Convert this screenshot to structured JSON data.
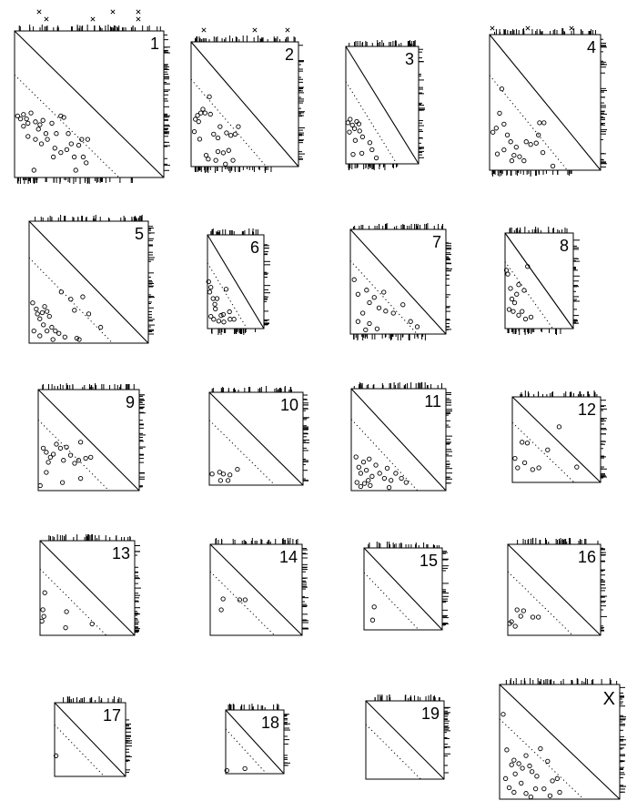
{
  "chart_data": {
    "type": "scatter",
    "panels": [
      {
        "label": "1",
        "points": [
          [
            0.02,
            0.42
          ],
          [
            0.04,
            0.4
          ],
          [
            0.06,
            0.43
          ],
          [
            0.08,
            0.4
          ],
          [
            0.09,
            0.37
          ],
          [
            0.06,
            0.35
          ],
          [
            0.11,
            0.44
          ],
          [
            0.14,
            0.38
          ],
          [
            0.17,
            0.36
          ],
          [
            0.19,
            0.39
          ],
          [
            0.16,
            0.33
          ],
          [
            0.21,
            0.3
          ],
          [
            0.25,
            0.37
          ],
          [
            0.28,
            0.3
          ],
          [
            0.31,
            0.42
          ],
          [
            0.33,
            0.41
          ],
          [
            0.14,
            0.26
          ],
          [
            0.18,
            0.23
          ],
          [
            0.22,
            0.26
          ],
          [
            0.27,
            0.2
          ],
          [
            0.31,
            0.17
          ],
          [
            0.35,
            0.19
          ],
          [
            0.38,
            0.23
          ],
          [
            0.43,
            0.22
          ],
          [
            0.45,
            0.26
          ],
          [
            0.49,
            0.26
          ],
          [
            0.36,
            0.3
          ],
          [
            0.4,
            0.14
          ],
          [
            0.46,
            0.14
          ],
          [
            0.48,
            0.1
          ],
          [
            0.13,
            0.05
          ],
          [
            0.26,
            0.14
          ],
          [
            0.41,
            0.05
          ],
          [
            0.09,
            0.28
          ]
        ]
      },
      {
        "label": "2",
        "points": [
          [
            0.04,
            0.38
          ],
          [
            0.06,
            0.41
          ],
          [
            0.09,
            0.43
          ],
          [
            0.07,
            0.36
          ],
          [
            0.11,
            0.46
          ],
          [
            0.13,
            0.43
          ],
          [
            0.17,
            0.56
          ],
          [
            0.18,
            0.42
          ],
          [
            0.03,
            0.28
          ],
          [
            0.08,
            0.22
          ],
          [
            0.21,
            0.26
          ],
          [
            0.25,
            0.23
          ],
          [
            0.27,
            0.32
          ],
          [
            0.33,
            0.27
          ],
          [
            0.37,
            0.25
          ],
          [
            0.41,
            0.26
          ],
          [
            0.44,
            0.32
          ],
          [
            0.14,
            0.09
          ],
          [
            0.16,
            0.06
          ],
          [
            0.25,
            0.12
          ],
          [
            0.3,
            0.11
          ],
          [
            0.35,
            0.13
          ],
          [
            0.23,
            0.05
          ],
          [
            0.32,
            0.02
          ],
          [
            0.39,
            0.05
          ]
        ]
      },
      {
        "label": "3",
        "points": [
          [
            0.03,
            0.35
          ],
          [
            0.06,
            0.38
          ],
          [
            0.05,
            0.27
          ],
          [
            0.09,
            0.33
          ],
          [
            0.12,
            0.3
          ],
          [
            0.15,
            0.36
          ],
          [
            0.18,
            0.34
          ],
          [
            0.19,
            0.28
          ],
          [
            0.13,
            0.2
          ],
          [
            0.23,
            0.23
          ],
          [
            0.33,
            0.18
          ],
          [
            0.36,
            0.12
          ],
          [
            0.42,
            0.05
          ],
          [
            0.1,
            0.08
          ],
          [
            0.22,
            0.09
          ]
        ]
      },
      {
        "label": "4",
        "points": [
          [
            0.03,
            0.28
          ],
          [
            0.06,
            0.31
          ],
          [
            0.09,
            0.42
          ],
          [
            0.11,
            0.6
          ],
          [
            0.13,
            0.34
          ],
          [
            0.16,
            0.26
          ],
          [
            0.19,
            0.21
          ],
          [
            0.22,
            0.11
          ],
          [
            0.07,
            0.12
          ],
          [
            0.13,
            0.15
          ],
          [
            0.24,
            0.17
          ],
          [
            0.27,
            0.1
          ],
          [
            0.33,
            0.21
          ],
          [
            0.37,
            0.19
          ],
          [
            0.42,
            0.2
          ],
          [
            0.44,
            0.26
          ],
          [
            0.45,
            0.35
          ],
          [
            0.49,
            0.35
          ],
          [
            0.48,
            0.13
          ],
          [
            0.57,
            0.03
          ],
          [
            0.2,
            0.07
          ],
          [
            0.31,
            0.07
          ]
        ]
      },
      {
        "label": "5",
        "points": [
          [
            0.03,
            0.33
          ],
          [
            0.06,
            0.28
          ],
          [
            0.07,
            0.24
          ],
          [
            0.09,
            0.2
          ],
          [
            0.11,
            0.25
          ],
          [
            0.13,
            0.3
          ],
          [
            0.15,
            0.26
          ],
          [
            0.17,
            0.22
          ],
          [
            0.12,
            0.15
          ],
          [
            0.15,
            0.1
          ],
          [
            0.19,
            0.13
          ],
          [
            0.22,
            0.1
          ],
          [
            0.25,
            0.08
          ],
          [
            0.27,
            0.42
          ],
          [
            0.35,
            0.36
          ],
          [
            0.38,
            0.27
          ],
          [
            0.45,
            0.38
          ],
          [
            0.5,
            0.24
          ],
          [
            0.6,
            0.13
          ],
          [
            0.3,
            0.05
          ],
          [
            0.4,
            0.04
          ],
          [
            0.42,
            0.03
          ],
          [
            0.09,
            0.06
          ],
          [
            0.04,
            0.1
          ],
          [
            0.2,
            0.03
          ]
        ]
      },
      {
        "label": "6",
        "points": [
          [
            0.02,
            0.5
          ],
          [
            0.04,
            0.39
          ],
          [
            0.06,
            0.44
          ],
          [
            0.1,
            0.32
          ],
          [
            0.13,
            0.26
          ],
          [
            0.14,
            0.21
          ],
          [
            0.17,
            0.32
          ],
          [
            0.2,
            0.08
          ],
          [
            0.24,
            0.14
          ],
          [
            0.28,
            0.15
          ],
          [
            0.33,
            0.42
          ],
          [
            0.39,
            0.18
          ],
          [
            0.4,
            0.1
          ],
          [
            0.47,
            0.1
          ],
          [
            0.06,
            0.13
          ],
          [
            0.11,
            0.1
          ],
          [
            0.29,
            0.07
          ]
        ]
      },
      {
        "label": "7",
        "points": [
          [
            0.04,
            0.52
          ],
          [
            0.08,
            0.38
          ],
          [
            0.13,
            0.2
          ],
          [
            0.17,
            0.42
          ],
          [
            0.2,
            0.3
          ],
          [
            0.25,
            0.35
          ],
          [
            0.3,
            0.25
          ],
          [
            0.35,
            0.4
          ],
          [
            0.37,
            0.22
          ],
          [
            0.45,
            0.2
          ],
          [
            0.55,
            0.28
          ],
          [
            0.63,
            0.12
          ],
          [
            0.7,
            0.07
          ],
          [
            0.2,
            0.1
          ],
          [
            0.28,
            0.05
          ],
          [
            0.08,
            0.12
          ],
          [
            0.16,
            0.04
          ]
        ]
      },
      {
        "label": "8",
        "points": [
          [
            0.02,
            0.61
          ],
          [
            0.04,
            0.57
          ],
          [
            0.08,
            0.42
          ],
          [
            0.1,
            0.31
          ],
          [
            0.14,
            0.27
          ],
          [
            0.17,
            0.36
          ],
          [
            0.2,
            0.46
          ],
          [
            0.28,
            0.4
          ],
          [
            0.12,
            0.18
          ],
          [
            0.2,
            0.14
          ],
          [
            0.25,
            0.18
          ],
          [
            0.3,
            0.1
          ],
          [
            0.38,
            0.12
          ],
          [
            0.33,
            0.65
          ],
          [
            0.06,
            0.2
          ]
        ]
      },
      {
        "label": "9",
        "points": [
          [
            0.05,
            0.42
          ],
          [
            0.08,
            0.38
          ],
          [
            0.1,
            0.28
          ],
          [
            0.12,
            0.33
          ],
          [
            0.15,
            0.36
          ],
          [
            0.18,
            0.46
          ],
          [
            0.22,
            0.42
          ],
          [
            0.25,
            0.3
          ],
          [
            0.28,
            0.43
          ],
          [
            0.32,
            0.35
          ],
          [
            0.36,
            0.27
          ],
          [
            0.4,
            0.3
          ],
          [
            0.42,
            0.48
          ],
          [
            0.47,
            0.32
          ],
          [
            0.52,
            0.33
          ],
          [
            0.02,
            0.05
          ],
          [
            0.08,
            0.18
          ],
          [
            0.24,
            0.08
          ],
          [
            0.42,
            0.12
          ]
        ]
      },
      {
        "label": "10",
        "points": [
          [
            0.03,
            0.12
          ],
          [
            0.11,
            0.14
          ],
          [
            0.15,
            0.12
          ],
          [
            0.22,
            0.11
          ],
          [
            0.3,
            0.17
          ],
          [
            0.12,
            0.05
          ],
          [
            0.2,
            0.05
          ]
        ]
      },
      {
        "label": "11",
        "points": [
          [
            0.05,
            0.33
          ],
          [
            0.08,
            0.23
          ],
          [
            0.1,
            0.17
          ],
          [
            0.13,
            0.28
          ],
          [
            0.16,
            0.2
          ],
          [
            0.19,
            0.31
          ],
          [
            0.22,
            0.14
          ],
          [
            0.26,
            0.25
          ],
          [
            0.3,
            0.17
          ],
          [
            0.35,
            0.12
          ],
          [
            0.38,
            0.22
          ],
          [
            0.42,
            0.1
          ],
          [
            0.47,
            0.17
          ],
          [
            0.53,
            0.12
          ],
          [
            0.58,
            0.08
          ],
          [
            0.06,
            0.08
          ],
          [
            0.1,
            0.04
          ],
          [
            0.14,
            0.07
          ],
          [
            0.2,
            0.05
          ],
          [
            0.4,
            0.03
          ],
          [
            0.18,
            0.1
          ]
        ]
      },
      {
        "label": "12",
        "points": [
          [
            0.03,
            0.28
          ],
          [
            0.06,
            0.17
          ],
          [
            0.11,
            0.47
          ],
          [
            0.14,
            0.23
          ],
          [
            0.17,
            0.46
          ],
          [
            0.23,
            0.15
          ],
          [
            0.3,
            0.17
          ],
          [
            0.4,
            0.38
          ],
          [
            0.53,
            0.65
          ],
          [
            0.73,
            0.18
          ]
        ]
      },
      {
        "label": "13",
        "points": [
          [
            0.05,
            0.45
          ],
          [
            0.03,
            0.27
          ],
          [
            0.04,
            0.2
          ],
          [
            0.02,
            0.15
          ],
          [
            0.28,
            0.25
          ],
          [
            0.27,
            0.08
          ],
          [
            0.55,
            0.12
          ]
        ]
      },
      {
        "label": "14",
        "points": [
          [
            0.12,
            0.28
          ],
          [
            0.14,
            0.4
          ],
          [
            0.32,
            0.39
          ],
          [
            0.38,
            0.39
          ]
        ]
      },
      {
        "label": "15",
        "points": [
          [
            0.11,
            0.12
          ],
          [
            0.13,
            0.28
          ]
        ]
      },
      {
        "label": "16",
        "points": [
          [
            0.02,
            0.13
          ],
          [
            0.04,
            0.15
          ],
          [
            0.08,
            0.1
          ],
          [
            0.1,
            0.28
          ],
          [
            0.14,
            0.21
          ],
          [
            0.17,
            0.27
          ],
          [
            0.27,
            0.2
          ],
          [
            0.33,
            0.2
          ]
        ]
      },
      {
        "label": "17",
        "points": [
          [
            0.02,
            0.28
          ]
        ]
      },
      {
        "label": "18",
        "points": [
          [
            0.02,
            0.05
          ],
          [
            0.33,
            0.08
          ]
        ]
      },
      {
        "label": "19",
        "points": []
      },
      {
        "label": "X",
        "points": [
          [
            0.03,
            0.74
          ],
          [
            0.06,
            0.43
          ],
          [
            0.1,
            0.3
          ],
          [
            0.12,
            0.34
          ],
          [
            0.13,
            0.22
          ],
          [
            0.16,
            0.31
          ],
          [
            0.19,
            0.27
          ],
          [
            0.22,
            0.38
          ],
          [
            0.25,
            0.29
          ],
          [
            0.27,
            0.24
          ],
          [
            0.31,
            0.2
          ],
          [
            0.34,
            0.44
          ],
          [
            0.4,
            0.33
          ],
          [
            0.44,
            0.16
          ],
          [
            0.48,
            0.18
          ],
          [
            0.37,
            0.09
          ],
          [
            0.3,
            0.09
          ],
          [
            0.08,
            0.1
          ],
          [
            0.05,
            0.18
          ],
          [
            0.18,
            0.14
          ],
          [
            0.22,
            0.05
          ],
          [
            0.12,
            0.06
          ],
          [
            0.5,
            0.06
          ],
          [
            0.42,
            0.03
          ],
          [
            0.26,
            0.02
          ]
        ]
      }
    ]
  }
}
